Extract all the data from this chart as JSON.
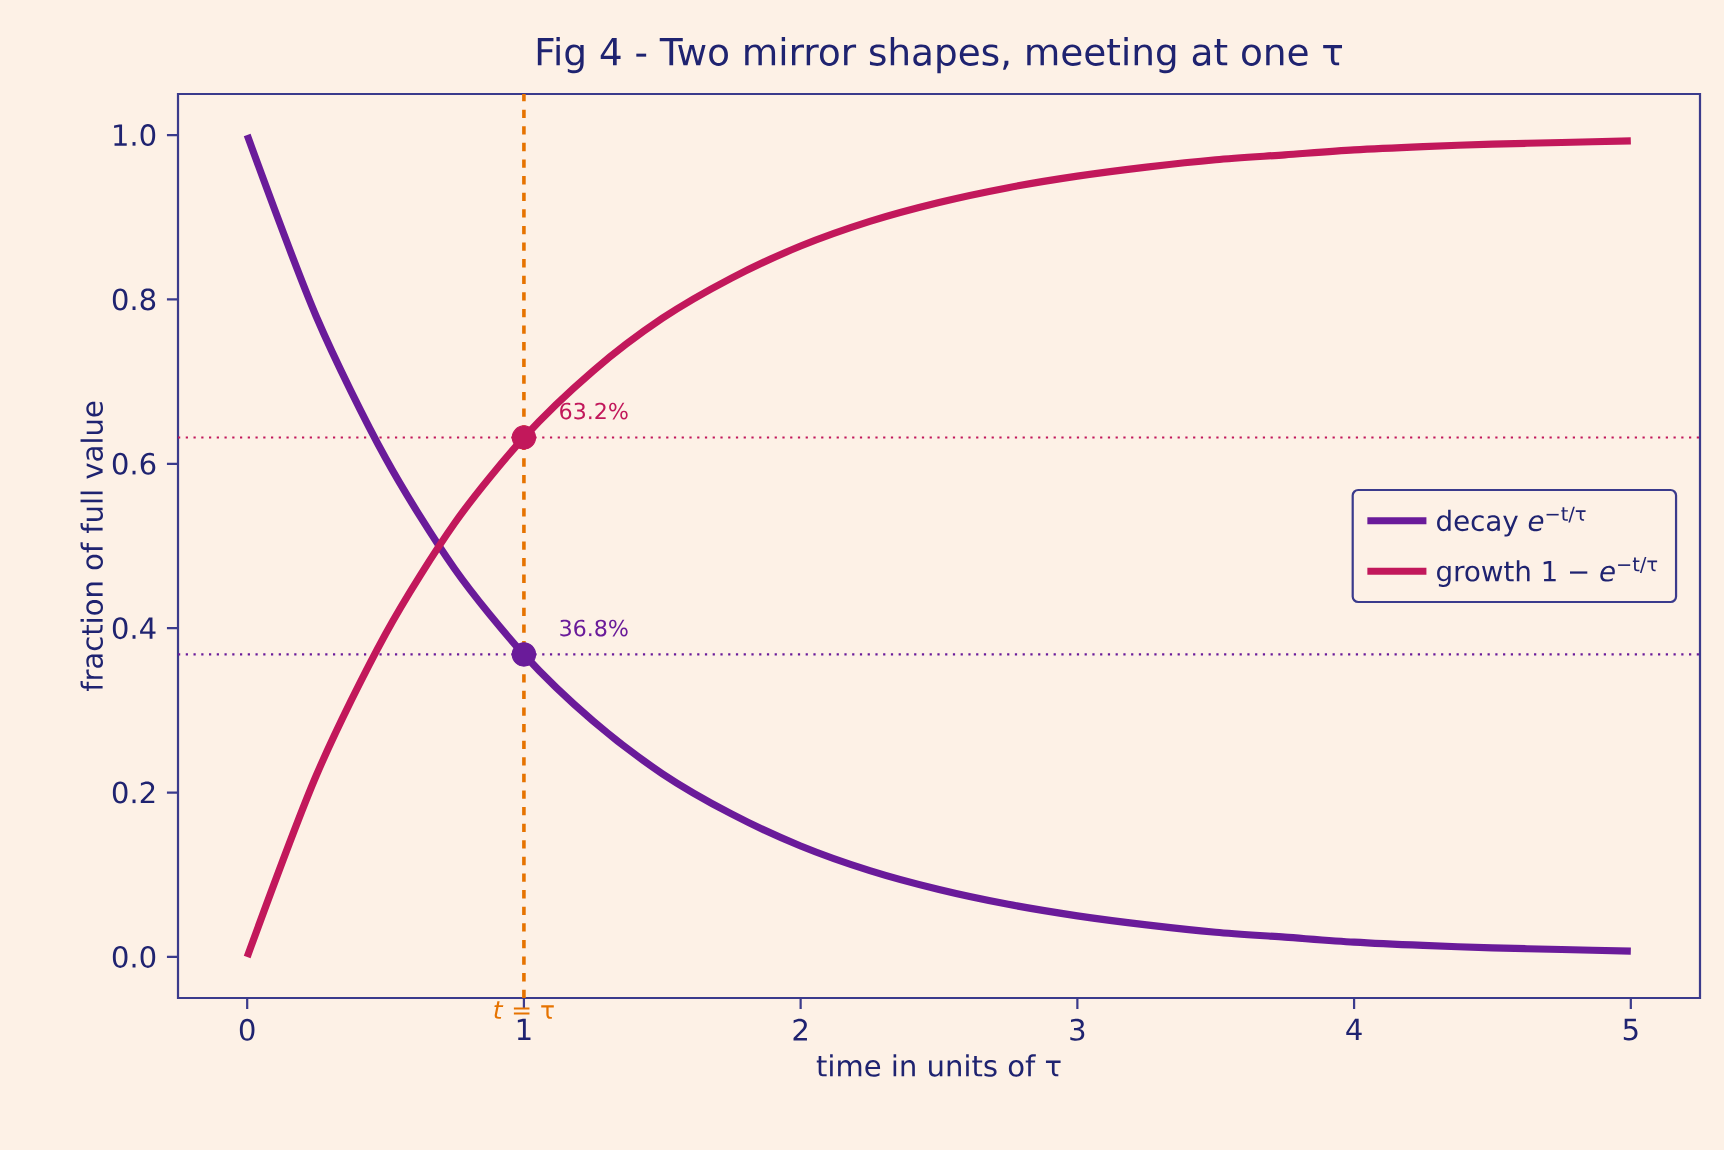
{
  "chart_data": {
    "type": "line",
    "title": "Fig 4 - Two mirror shapes, meeting at one τ",
    "xlabel": "time in units of  τ",
    "ylabel": "fraction of full value",
    "x": [
      0,
      0.25,
      0.5,
      0.75,
      1,
      1.25,
      1.5,
      1.75,
      2,
      2.25,
      2.5,
      2.75,
      3,
      3.25,
      3.5,
      3.75,
      4,
      4.25,
      4.5,
      4.75,
      5
    ],
    "series": [
      {
        "name": "decay  *e*$^{−t/τ}$",
        "color": "#6a1b9a",
        "values": [
          1,
          0.779,
          0.607,
          0.472,
          0.368,
          0.287,
          0.223,
          0.174,
          0.135,
          0.105,
          0.082,
          0.064,
          0.05,
          0.039,
          0.03,
          0.024,
          0.018,
          0.014,
          0.011,
          0.009,
          0.007
        ]
      },
      {
        "name": "growth  1 − *e*$^{−t/τ}$",
        "color": "#c2185b",
        "values": [
          0,
          0.221,
          0.393,
          0.528,
          0.632,
          0.713,
          0.777,
          0.826,
          0.865,
          0.895,
          0.918,
          0.936,
          0.95,
          0.961,
          0.97,
          0.976,
          0.982,
          0.986,
          0.989,
          0.991,
          0.993
        ]
      },
      {
        "type": "scatter",
        "color": "#c2185b",
        "x": [
          1
        ],
        "values": [
          0.632
        ],
        "value_labels": [
          "63.2%"
        ]
      },
      {
        "type": "scatter",
        "color": "#6a1b9a",
        "x": [
          1
        ],
        "values": [
          0.368
        ],
        "value_labels": [
          "36.8%"
        ]
      }
    ],
    "xlim": [
      -0.25,
      5.25
    ],
    "ylim": [
      -0.05,
      1.05
    ],
    "xticks": [
      0,
      1,
      2,
      3,
      4,
      5
    ],
    "yticks": [
      {
        "value": 0,
        "label": "0.0"
      },
      {
        "value": 0.2,
        "label": "0.2"
      },
      {
        "value": 0.4,
        "label": "0.4"
      },
      {
        "value": 0.6,
        "label": "0.6"
      },
      {
        "value": 0.8,
        "label": "0.8"
      },
      {
        "value": 1,
        "label": "1.0"
      }
    ],
    "ref_lines": [
      {
        "axis": "x",
        "value": 1,
        "label": "*t* = τ",
        "color": "#e67300",
        "line_style": "dashed"
      },
      {
        "axis": "y",
        "value": 0.632,
        "color": "#c2185b",
        "line_style": "dotted"
      },
      {
        "axis": "y",
        "value": 0.368,
        "color": "#6a1b9a",
        "line_style": "dotted"
      }
    ],
    "grid": false,
    "legend": "right",
    "line_style": "solid"
  }
}
